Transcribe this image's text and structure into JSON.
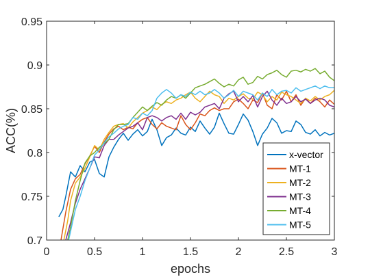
{
  "chart_data": {
    "type": "line",
    "xlabel": "epochs",
    "ylabel": "ACC(%)",
    "xlim": [
      0,
      3
    ],
    "ylim": [
      0.7,
      0.95
    ],
    "xticks": [
      0,
      0.5,
      1,
      1.5,
      2,
      2.5,
      3
    ],
    "xtick_labels": [
      "0",
      "0.5",
      "1",
      "1.5",
      "2",
      "2.5",
      "3"
    ],
    "yticks": [
      0.7,
      0.75,
      0.8,
      0.85,
      0.9,
      0.95
    ],
    "ytick_labels": [
      "0.7",
      "0.75",
      "0.8",
      "0.85",
      "0.9",
      "0.95"
    ],
    "grid": false,
    "legend_position": "bottom-right",
    "series": [
      {
        "name": "x-vector",
        "color": "#0072BD",
        "x": [
          0.13,
          0.17,
          0.2,
          0.25,
          0.3,
          0.35,
          0.4,
          0.45,
          0.5,
          0.55,
          0.6,
          0.65,
          0.7,
          0.75,
          0.8,
          0.85,
          0.9,
          0.95,
          1.0,
          1.05,
          1.1,
          1.15,
          1.2,
          1.25,
          1.3,
          1.35,
          1.4,
          1.45,
          1.5,
          1.55,
          1.6,
          1.65,
          1.7,
          1.75,
          1.8,
          1.85,
          1.9,
          1.95,
          2.0,
          2.05,
          2.1,
          2.15,
          2.2,
          2.25,
          2.3,
          2.35,
          2.4,
          2.45,
          2.5,
          2.55,
          2.6,
          2.65,
          2.7,
          2.75,
          2.8,
          2.85,
          2.9,
          2.95,
          3.0
        ],
        "y": [
          0.727,
          0.735,
          0.75,
          0.778,
          0.772,
          0.785,
          0.778,
          0.789,
          0.792,
          0.776,
          0.772,
          0.795,
          0.806,
          0.815,
          0.822,
          0.814,
          0.821,
          0.826,
          0.819,
          0.824,
          0.838,
          0.826,
          0.808,
          0.817,
          0.82,
          0.828,
          0.822,
          0.82,
          0.829,
          0.824,
          0.836,
          0.828,
          0.821,
          0.829,
          0.845,
          0.833,
          0.822,
          0.821,
          0.832,
          0.844,
          0.837,
          0.824,
          0.808,
          0.821,
          0.828,
          0.839,
          0.834,
          0.822,
          0.825,
          0.824,
          0.836,
          0.832,
          0.823,
          0.821,
          0.826,
          0.819,
          0.823,
          0.82,
          0.822
        ]
      },
      {
        "name": "MT-1",
        "color": "#D95319",
        "x": [
          0.15,
          0.2,
          0.25,
          0.3,
          0.35,
          0.4,
          0.45,
          0.5,
          0.55,
          0.6,
          0.65,
          0.7,
          0.75,
          0.8,
          0.85,
          0.9,
          0.95,
          1.0,
          1.05,
          1.1,
          1.15,
          1.2,
          1.25,
          1.3,
          1.35,
          1.4,
          1.45,
          1.5,
          1.55,
          1.6,
          1.65,
          1.7,
          1.75,
          1.8,
          1.85,
          1.9,
          1.95,
          2.0,
          2.05,
          2.1,
          2.15,
          2.2,
          2.25,
          2.3,
          2.35,
          2.4,
          2.45,
          2.5,
          2.55,
          2.6,
          2.65,
          2.7,
          2.75,
          2.8,
          2.85,
          2.9,
          2.95,
          3.0
        ],
        "y": [
          0.7,
          0.732,
          0.758,
          0.77,
          0.775,
          0.787,
          0.796,
          0.807,
          0.8,
          0.812,
          0.821,
          0.827,
          0.83,
          0.826,
          0.829,
          0.827,
          0.834,
          0.838,
          0.84,
          0.832,
          0.827,
          0.834,
          0.83,
          0.828,
          0.826,
          0.842,
          0.832,
          0.826,
          0.834,
          0.844,
          0.842,
          0.848,
          0.851,
          0.848,
          0.85,
          0.85,
          0.858,
          0.861,
          0.856,
          0.85,
          0.86,
          0.857,
          0.868,
          0.854,
          0.85,
          0.866,
          0.86,
          0.87,
          0.858,
          0.866,
          0.854,
          0.862,
          0.856,
          0.862,
          0.858,
          0.852,
          0.86,
          0.855
        ]
      },
      {
        "name": "MT-2",
        "color": "#EDB120",
        "x": [
          0.18,
          0.22,
          0.25,
          0.3,
          0.35,
          0.4,
          0.45,
          0.5,
          0.55,
          0.6,
          0.65,
          0.7,
          0.75,
          0.8,
          0.85,
          0.9,
          0.95,
          1.0,
          1.05,
          1.1,
          1.15,
          1.2,
          1.25,
          1.3,
          1.35,
          1.4,
          1.45,
          1.5,
          1.55,
          1.6,
          1.65,
          1.7,
          1.75,
          1.8,
          1.85,
          1.9,
          1.95,
          2.0,
          2.05,
          2.1,
          2.15,
          2.2,
          2.25,
          2.3,
          2.35,
          2.4,
          2.45,
          2.5,
          2.55,
          2.6,
          2.65,
          2.7,
          2.75,
          2.8,
          2.85,
          2.9,
          2.95,
          3.0
        ],
        "y": [
          0.7,
          0.722,
          0.745,
          0.765,
          0.772,
          0.782,
          0.795,
          0.808,
          0.803,
          0.815,
          0.823,
          0.83,
          0.832,
          0.833,
          0.828,
          0.835,
          0.84,
          0.845,
          0.848,
          0.852,
          0.849,
          0.855,
          0.858,
          0.856,
          0.86,
          0.862,
          0.866,
          0.869,
          0.862,
          0.858,
          0.864,
          0.87,
          0.866,
          0.864,
          0.856,
          0.862,
          0.86,
          0.864,
          0.867,
          0.862,
          0.861,
          0.869,
          0.866,
          0.858,
          0.864,
          0.86,
          0.869,
          0.866,
          0.864,
          0.86,
          0.856,
          0.862,
          0.859,
          0.864,
          0.86,
          0.864,
          0.866,
          0.871
        ]
      },
      {
        "name": "MT-3",
        "color": "#7E2F8E",
        "x": [
          0.2,
          0.25,
          0.3,
          0.35,
          0.4,
          0.45,
          0.5,
          0.55,
          0.6,
          0.65,
          0.7,
          0.75,
          0.8,
          0.85,
          0.9,
          0.95,
          1.0,
          1.05,
          1.1,
          1.15,
          1.2,
          1.25,
          1.3,
          1.35,
          1.4,
          1.45,
          1.5,
          1.55,
          1.6,
          1.65,
          1.7,
          1.75,
          1.8,
          1.85,
          1.9,
          1.95,
          2.0,
          2.05,
          2.1,
          2.15,
          2.2,
          2.25,
          2.3,
          2.35,
          2.4,
          2.45,
          2.5,
          2.55,
          2.6,
          2.65,
          2.7,
          2.75,
          2.8,
          2.85,
          2.9,
          2.95,
          3.0
        ],
        "y": [
          0.7,
          0.72,
          0.742,
          0.758,
          0.77,
          0.782,
          0.795,
          0.794,
          0.808,
          0.815,
          0.815,
          0.82,
          0.824,
          0.828,
          0.83,
          0.834,
          0.826,
          0.84,
          0.842,
          0.84,
          0.836,
          0.84,
          0.842,
          0.838,
          0.845,
          0.838,
          0.846,
          0.843,
          0.846,
          0.852,
          0.854,
          0.856,
          0.85,
          0.862,
          0.867,
          0.87,
          0.858,
          0.864,
          0.858,
          0.865,
          0.852,
          0.864,
          0.87,
          0.86,
          0.854,
          0.862,
          0.856,
          0.858,
          0.864,
          0.858,
          0.861,
          0.856,
          0.86,
          0.862,
          0.86,
          0.854,
          0.852
        ]
      },
      {
        "name": "MT-4",
        "color": "#77AC30",
        "x": [
          0.22,
          0.25,
          0.3,
          0.35,
          0.4,
          0.45,
          0.5,
          0.55,
          0.6,
          0.65,
          0.7,
          0.75,
          0.8,
          0.85,
          0.9,
          0.95,
          1.0,
          1.05,
          1.1,
          1.15,
          1.2,
          1.25,
          1.3,
          1.35,
          1.4,
          1.45,
          1.5,
          1.55,
          1.6,
          1.65,
          1.7,
          1.75,
          1.8,
          1.85,
          1.9,
          1.95,
          2.0,
          2.05,
          2.1,
          2.15,
          2.2,
          2.25,
          2.3,
          2.35,
          2.4,
          2.45,
          2.5,
          2.55,
          2.6,
          2.65,
          2.7,
          2.75,
          2.8,
          2.85,
          2.9,
          2.95,
          3.0
        ],
        "y": [
          0.7,
          0.715,
          0.745,
          0.768,
          0.788,
          0.796,
          0.8,
          0.806,
          0.81,
          0.815,
          0.826,
          0.832,
          0.832,
          0.833,
          0.84,
          0.846,
          0.852,
          0.848,
          0.853,
          0.857,
          0.854,
          0.86,
          0.864,
          0.862,
          0.866,
          0.862,
          0.868,
          0.874,
          0.876,
          0.878,
          0.881,
          0.884,
          0.879,
          0.875,
          0.878,
          0.876,
          0.883,
          0.886,
          0.878,
          0.88,
          0.887,
          0.884,
          0.889,
          0.891,
          0.894,
          0.889,
          0.886,
          0.893,
          0.894,
          0.892,
          0.895,
          0.893,
          0.896,
          0.89,
          0.893,
          0.886,
          0.882
        ]
      },
      {
        "name": "MT-5",
        "color": "#4DBEEE",
        "x": [
          0.23,
          0.26,
          0.3,
          0.35,
          0.4,
          0.45,
          0.5,
          0.55,
          0.6,
          0.65,
          0.7,
          0.75,
          0.8,
          0.85,
          0.9,
          0.95,
          1.0,
          1.05,
          1.1,
          1.15,
          1.2,
          1.25,
          1.3,
          1.35,
          1.4,
          1.45,
          1.5,
          1.55,
          1.6,
          1.65,
          1.7,
          1.75,
          1.8,
          1.85,
          1.9,
          1.95,
          2.0,
          2.05,
          2.1,
          2.15,
          2.2,
          2.25,
          2.3,
          2.35,
          2.4,
          2.45,
          2.5,
          2.55,
          2.6,
          2.65,
          2.7,
          2.75,
          2.8,
          2.85,
          2.9,
          2.95,
          3.0
        ],
        "y": [
          0.7,
          0.715,
          0.735,
          0.75,
          0.768,
          0.782,
          0.797,
          0.803,
          0.811,
          0.818,
          0.822,
          0.827,
          0.83,
          0.832,
          0.84,
          0.838,
          0.845,
          0.842,
          0.848,
          0.862,
          0.868,
          0.872,
          0.868,
          0.862,
          0.866,
          0.864,
          0.869,
          0.866,
          0.87,
          0.866,
          0.868,
          0.872,
          0.868,
          0.862,
          0.866,
          0.871,
          0.864,
          0.87,
          0.868,
          0.866,
          0.86,
          0.868,
          0.864,
          0.872,
          0.866,
          0.87,
          0.871,
          0.868,
          0.874,
          0.87,
          0.872,
          0.874,
          0.876,
          0.873,
          0.876,
          0.874,
          0.874
        ]
      }
    ]
  }
}
